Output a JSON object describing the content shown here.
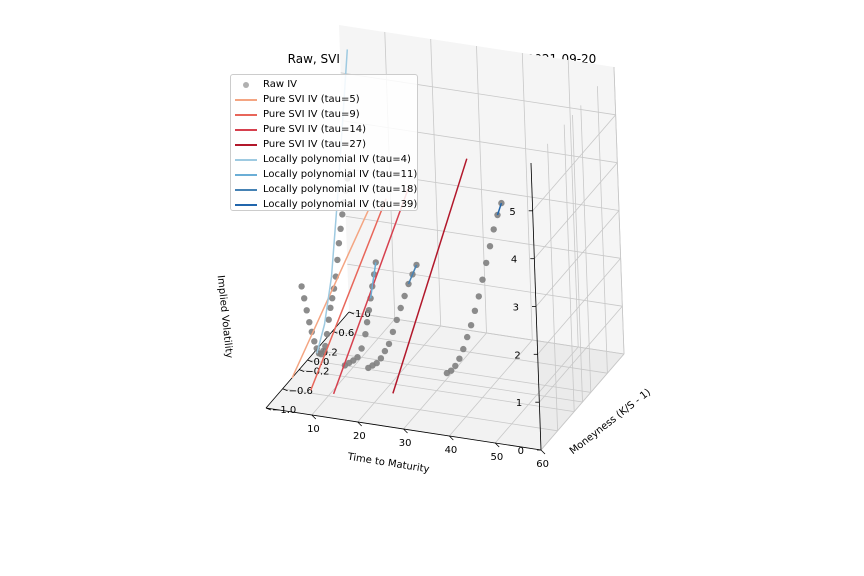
{
  "chart_data": {
    "type": "scatter",
    "title": "Raw, SVI, and locally polynomial IVs on 2021-09-20",
    "xlabel": "Time to Maturity",
    "ylabel": "Moneyness (K/S - 1)",
    "zlabel": "Implied Volatility",
    "x_ticks": [
      "60",
      "50",
      "40",
      "30",
      "20",
      "10"
    ],
    "y_ticks": [
      "−1.0",
      "−0.6",
      "−0.2",
      "0.0",
      "0.2",
      "0.6",
      "1.0"
    ],
    "z_ticks": [
      "0",
      "1",
      "2",
      "3",
      "4",
      "5"
    ],
    "xlim": [
      0,
      60
    ],
    "ylim": [
      -1.0,
      1.0
    ],
    "zlim": [
      0,
      6
    ],
    "legend_position": "top-left",
    "grid": true,
    "series": [
      {
        "name": "Raw IV",
        "kind": "scatter",
        "color": "#808080",
        "points": [
          [
            4,
            0.25,
            1.3
          ],
          [
            4,
            0.3,
            1.5
          ],
          [
            4,
            0.35,
            1.8
          ],
          [
            4,
            0.4,
            2.1
          ],
          [
            4,
            0.45,
            2.35
          ],
          [
            4,
            0.5,
            2.6
          ],
          [
            4,
            0.55,
            2.8
          ],
          [
            4,
            0.6,
            3.0
          ],
          [
            4,
            0.65,
            3.2
          ],
          [
            4,
            0.2,
            1.15
          ],
          [
            4,
            0.15,
            1.0
          ],
          [
            4,
            0.1,
            0.8
          ],
          [
            4,
            0.05,
            0.55
          ],
          [
            4,
            0.0,
            0.35
          ],
          [
            4,
            -0.05,
            0.3
          ],
          [
            4,
            -0.1,
            0.28
          ],
          [
            4,
            -0.15,
            0.35
          ],
          [
            4,
            -0.2,
            0.5
          ],
          [
            4,
            -0.25,
            0.7
          ],
          [
            4,
            -0.3,
            0.95
          ],
          [
            4,
            -0.35,
            1.2
          ],
          [
            4,
            -0.4,
            1.5
          ],
          [
            4,
            -0.45,
            1.8
          ],
          [
            4,
            -0.5,
            2.1
          ],
          [
            11,
            -0.3,
            0.35
          ],
          [
            11,
            -0.2,
            0.3
          ],
          [
            11,
            -0.1,
            0.25
          ],
          [
            11,
            0.0,
            0.22
          ],
          [
            11,
            0.1,
            0.3
          ],
          [
            11,
            0.2,
            0.5
          ],
          [
            11,
            0.25,
            0.7
          ],
          [
            11,
            0.3,
            0.9
          ],
          [
            11,
            0.35,
            1.1
          ],
          [
            11,
            0.4,
            1.3
          ],
          [
            11,
            0.45,
            1.5
          ],
          [
            11,
            0.5,
            1.7
          ],
          [
            18,
            -0.5,
            0.6
          ],
          [
            18,
            -0.4,
            0.55
          ],
          [
            18,
            -0.3,
            0.5
          ],
          [
            18,
            -0.2,
            0.5
          ],
          [
            18,
            -0.1,
            0.55
          ],
          [
            18,
            0.0,
            0.6
          ],
          [
            18,
            0.1,
            0.75
          ],
          [
            18,
            0.2,
            0.9
          ],
          [
            18,
            0.3,
            1.05
          ],
          [
            18,
            0.4,
            1.2
          ],
          [
            18,
            0.5,
            1.35
          ],
          [
            18,
            0.6,
            1.45
          ],
          [
            18,
            0.7,
            1.55
          ],
          [
            39,
            -0.9,
            1.2
          ],
          [
            39,
            -0.8,
            1.15
          ],
          [
            39,
            -0.7,
            1.15
          ],
          [
            39,
            -0.6,
            1.2
          ],
          [
            39,
            -0.5,
            1.3
          ],
          [
            39,
            -0.4,
            1.45
          ],
          [
            39,
            -0.3,
            1.6
          ],
          [
            39,
            -0.2,
            1.8
          ],
          [
            39,
            -0.1,
            2.0
          ],
          [
            39,
            0.0,
            2.25
          ],
          [
            39,
            0.1,
            2.5
          ],
          [
            39,
            0.2,
            2.75
          ],
          [
            39,
            0.3,
            3.0
          ],
          [
            39,
            0.4,
            3.2
          ],
          [
            39,
            0.5,
            3.35
          ]
        ]
      },
      {
        "name": "Pure SVI IV (tau=5)",
        "kind": "line",
        "color": "#f4a582",
        "points": [
          [
            5,
            -0.9,
            0.6
          ],
          [
            5,
            1.0,
            2.2
          ]
        ]
      },
      {
        "name": "Pure SVI IV (tau=9)",
        "kind": "line",
        "color": "#e8665a",
        "points": [
          [
            9,
            -0.9,
            0.4
          ],
          [
            9,
            1.0,
            2.5
          ]
        ]
      },
      {
        "name": "Pure SVI IV (tau=14)",
        "kind": "line",
        "color": "#d6404e",
        "points": [
          [
            14,
            -0.9,
            0.4
          ],
          [
            14,
            1.0,
            2.8
          ]
        ]
      },
      {
        "name": "Pure SVI IV (tau=27)",
        "kind": "line",
        "color": "#b2182b",
        "points": [
          [
            27,
            -0.9,
            0.6
          ],
          [
            27,
            1.0,
            3.6
          ]
        ]
      },
      {
        "name": "Locally polynomial IV (tau=4)",
        "kind": "line",
        "color": "#9ecae1",
        "points": [
          [
            4,
            -0.2,
            0.4
          ],
          [
            4,
            0.0,
            0.8
          ],
          [
            4,
            0.2,
            1.6
          ],
          [
            4,
            0.4,
            3.0
          ],
          [
            4,
            0.6,
            4.6
          ],
          [
            4,
            0.75,
            5.8
          ]
        ]
      },
      {
        "name": "Locally polynomial IV (tau=11)",
        "kind": "line",
        "color": "#6baed6",
        "points": [
          [
            11,
            0.35,
            1.1
          ],
          [
            11,
            0.5,
            1.7
          ]
        ]
      },
      {
        "name": "Locally polynomial IV (tau=18)",
        "kind": "line",
        "color": "#4682b4",
        "points": [
          [
            18,
            0.5,
            1.35
          ],
          [
            18,
            0.7,
            1.55
          ]
        ]
      },
      {
        "name": "Locally polynomial IV (tau=39)",
        "kind": "line",
        "color": "#2166ac",
        "points": [
          [
            39,
            0.4,
            3.2
          ],
          [
            39,
            0.5,
            3.35
          ]
        ]
      }
    ]
  }
}
